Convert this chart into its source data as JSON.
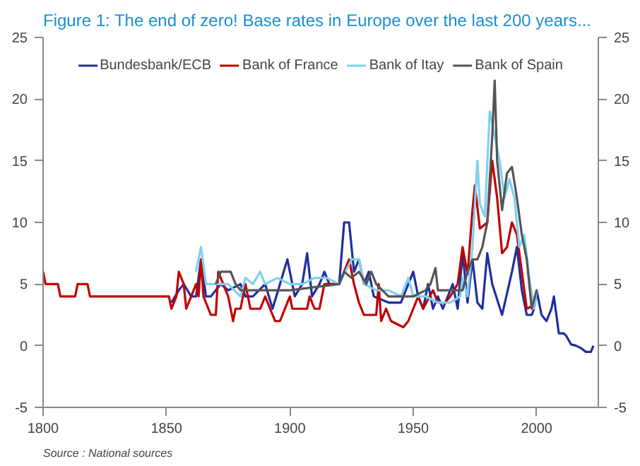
{
  "chart_data": {
    "type": "line",
    "title": "Figure 1: The end of zero! Base rates in Europe over the last 200 years...",
    "annotations": [
      "Source : National sources"
    ],
    "xlim": [
      1800,
      2025
    ],
    "xticks": [
      1800,
      1850,
      1900,
      1950,
      2000
    ],
    "ylim": [
      -5,
      25
    ],
    "yticks": [
      -5,
      0,
      5,
      10,
      15,
      20,
      25
    ],
    "y2lim": [
      -5,
      25
    ],
    "y2ticks": [
      -5,
      0,
      5,
      10,
      15,
      20,
      25
    ],
    "grid": false,
    "legend": "top",
    "line_style": "solid",
    "marker": "none",
    "series": [
      {
        "name": "Bundesbank/ECB",
        "color": "#1f2f9e",
        "x": [
          1852,
          1855,
          1857,
          1860,
          1862,
          1864,
          1866,
          1868,
          1870,
          1872,
          1875,
          1880,
          1882,
          1885,
          1890,
          1893,
          1896,
          1899,
          1902,
          1905,
          1907,
          1909,
          1912,
          1914,
          1916,
          1920,
          1922,
          1924,
          1926,
          1928,
          1930,
          1932,
          1934,
          1940,
          1945,
          1948,
          1950,
          1952,
          1954,
          1956,
          1958,
          1960,
          1962,
          1966,
          1968,
          1970,
          1972,
          1974,
          1976,
          1978,
          1980,
          1982,
          1986,
          1990,
          1992,
          1994,
          1996,
          1998,
          1999,
          2000,
          2002,
          2004,
          2006,
          2007,
          2008,
          2009,
          2011,
          2012,
          2014,
          2016,
          2018,
          2020,
          2022,
          2023
        ],
        "values": [
          3.5,
          4.5,
          5,
          4,
          4,
          7,
          4,
          4,
          4.5,
          5,
          4.5,
          5,
          4,
          4,
          5,
          3,
          5,
          7,
          4,
          5,
          7.5,
          4,
          5,
          6,
          5,
          5,
          10,
          10,
          6,
          7,
          5,
          6,
          4,
          3.5,
          3.5,
          5,
          6,
          4,
          3,
          5,
          3,
          4,
          3,
          5,
          3,
          7.5,
          3.5,
          7,
          3.5,
          3,
          7.5,
          5,
          2.5,
          6,
          8,
          4.5,
          2.5,
          2.5,
          3,
          4.5,
          2.5,
          2,
          3,
          4,
          2.5,
          1,
          1,
          0.8,
          0.1,
          0,
          -0.2,
          -0.5,
          -0.5,
          0
        ]
      },
      {
        "name": "Bank of France",
        "color": "#c00000",
        "x": [
          1800,
          1801,
          1806,
          1807,
          1813,
          1814,
          1818,
          1819,
          1851,
          1852,
          1854,
          1855,
          1857,
          1858,
          1860,
          1862,
          1863,
          1864,
          1865,
          1868,
          1870,
          1871,
          1873,
          1875,
          1877,
          1878,
          1880,
          1882,
          1884,
          1888,
          1890,
          1894,
          1896,
          1898,
          1900,
          1901,
          1907,
          1908,
          1910,
          1912,
          1913,
          1914,
          1920,
          1922,
          1924,
          1926,
          1928,
          1930,
          1935,
          1936,
          1937,
          1939,
          1941,
          1946,
          1948,
          1950,
          1952,
          1954,
          1958,
          1960,
          1963,
          1965,
          1968,
          1970,
          1972,
          1974,
          1975,
          1977,
          1980,
          1982,
          1984,
          1986,
          1988,
          1990,
          1992,
          1994,
          1996,
          1998
        ],
        "values": [
          6,
          5,
          5,
          4,
          4,
          5,
          5,
          4,
          4,
          3,
          4,
          6,
          5,
          3,
          4,
          5,
          4,
          7,
          4,
          2.5,
          2.5,
          6,
          5,
          4,
          2,
          3,
          3,
          5,
          3,
          3,
          4,
          2,
          2,
          3,
          4,
          3,
          3,
          4,
          3,
          3,
          4,
          5,
          5,
          6,
          7,
          5,
          3.5,
          2.5,
          2.5,
          5,
          2,
          3,
          2,
          1.5,
          2,
          3,
          4,
          3,
          4.5,
          3.5,
          3.5,
          4,
          5,
          8,
          5.8,
          11,
          13,
          9.5,
          10,
          15,
          12,
          7.5,
          8,
          10,
          9,
          6,
          3,
          3.2
        ]
      },
      {
        "name": "Bank of Itay",
        "color": "#7fd0f0",
        "x": [
          1862,
          1864,
          1866,
          1870,
          1875,
          1880,
          1882,
          1885,
          1888,
          1890,
          1895,
          1900,
          1905,
          1910,
          1915,
          1920,
          1925,
          1928,
          1930,
          1935,
          1940,
          1945,
          1948,
          1950,
          1955,
          1960,
          1965,
          1969,
          1970,
          1972,
          1974,
          1976,
          1977,
          1979,
          1981,
          1983,
          1985,
          1987,
          1989,
          1991,
          1993,
          1995,
          1997,
          1999,
          2000
        ],
        "values": [
          6,
          8,
          5,
          5,
          5,
          4,
          5.5,
          5,
          6,
          5,
          5.5,
          5,
          5,
          5.5,
          5.5,
          5,
          7,
          7,
          5,
          4.5,
          4.5,
          4,
          5.5,
          4,
          4,
          3.5,
          3.5,
          4,
          5.5,
          4,
          8,
          15,
          11.5,
          10.5,
          19,
          17,
          15,
          12,
          13.5,
          12,
          8,
          9,
          5.5,
          3,
          4.5
        ]
      },
      {
        "name": "Bank of Spain",
        "color": "#555555",
        "x": [
          1870,
          1872,
          1876,
          1878,
          1880,
          1900,
          1920,
          1922,
          1925,
          1928,
          1931,
          1933,
          1935,
          1940,
          1947,
          1950,
          1955,
          1957,
          1959,
          1960,
          1970,
          1972,
          1974,
          1976,
          1978,
          1980,
          1982,
          1983,
          1984,
          1986,
          1988,
          1990,
          1992,
          1994,
          1996,
          1998,
          2000
        ],
        "values": [
          5,
          6,
          6,
          5,
          4.5,
          4.5,
          5,
          6,
          5.5,
          6,
          5,
          6,
          5,
          4,
          4,
          4,
          4.5,
          5,
          6.3,
          4.5,
          4.5,
          6,
          7,
          7,
          8,
          10,
          17,
          21.5,
          15,
          11,
          14,
          14.5,
          12,
          9,
          7,
          3,
          4.5
        ]
      }
    ]
  }
}
